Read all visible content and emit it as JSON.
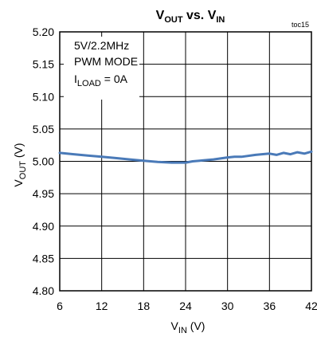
{
  "chart_data": {
    "type": "line",
    "title": {
      "v1": "V",
      "v1_sub": "OUT",
      "mid": " vs. ",
      "v2": "V",
      "v2_sub": "IN"
    },
    "tag": "toc15",
    "xlabel": {
      "main": "V",
      "sub": "IN",
      "unit": " (V)"
    },
    "ylabel": {
      "main": "V",
      "sub": "OUT",
      "unit": " (V)"
    },
    "xlim": [
      6,
      42
    ],
    "ylim": [
      4.8,
      5.2
    ],
    "xticks": [
      "6",
      "12",
      "18",
      "24",
      "30",
      "36",
      "42"
    ],
    "yticks": [
      "5.20",
      "5.15",
      "5.10",
      "5.05",
      "5.00",
      "4.95",
      "4.90",
      "4.85",
      "4.80"
    ],
    "grid": true,
    "annotations": {
      "line1": "5V/2.2MHz",
      "line2": "PWM MODE",
      "line3_main": "I",
      "line3_sub": "LOAD",
      "line3_rest": " = 0A"
    },
    "series_color": "#4a7ab8",
    "series": [
      {
        "x": [
          6,
          8,
          10,
          12,
          14,
          16,
          18,
          20,
          22,
          24,
          25,
          26,
          28,
          30,
          31,
          32,
          34,
          36,
          37,
          38,
          39,
          40,
          41,
          42
        ],
        "values": [
          5.013,
          5.011,
          5.009,
          5.007,
          5.005,
          5.003,
          5.001,
          4.999,
          4.998,
          4.998,
          5.0,
          5.001,
          5.003,
          5.006,
          5.007,
          5.007,
          5.01,
          5.012,
          5.01,
          5.013,
          5.011,
          5.014,
          5.012,
          5.015
        ]
      }
    ]
  }
}
